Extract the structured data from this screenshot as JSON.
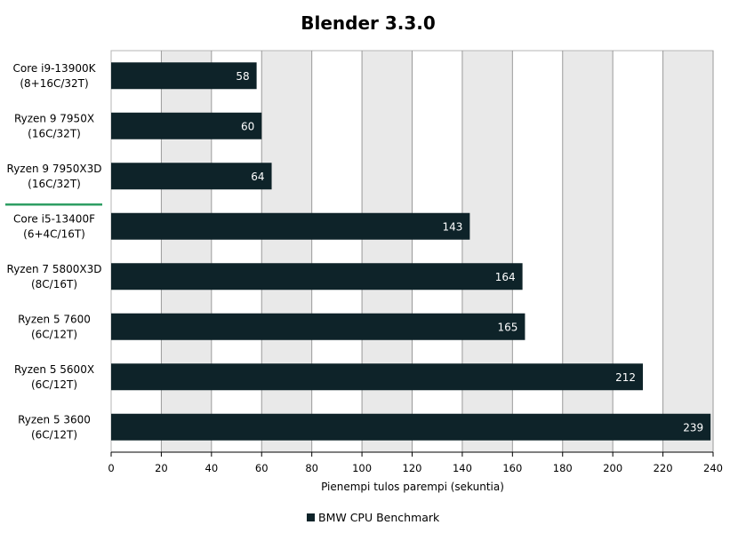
{
  "chart_data": {
    "type": "bar",
    "orientation": "horizontal",
    "title": "Blender 3.3.0",
    "xlabel": "Pienempi tulos parempi (sekuntia)",
    "ylabel": "",
    "xlim": [
      0,
      240
    ],
    "xticks": [
      0,
      20,
      40,
      60,
      80,
      100,
      120,
      140,
      160,
      180,
      200,
      220,
      240
    ],
    "grid": true,
    "legend_position": "bottom",
    "categories": [
      [
        "Core i9-13900K",
        "(8+16C/32T)"
      ],
      [
        "Ryzen 9 7950X",
        "(16C/32T)"
      ],
      [
        "Ryzen 9 7950X3D",
        "(16C/32T)"
      ],
      [
        "Core i5-13400F",
        "(6+4C/16T)"
      ],
      [
        "Ryzen 7 5800X3D",
        "(8C/16T)"
      ],
      [
        "Ryzen 5 7600",
        "(6C/12T)"
      ],
      [
        "Ryzen 5 5600X",
        "(6C/12T)"
      ],
      [
        "Ryzen 5 3600",
        "(6C/12T)"
      ]
    ],
    "highlighted_category_index": 2,
    "series": [
      {
        "name": "BMW CPU Benchmark",
        "values": [
          58,
          60,
          64,
          143,
          164,
          165,
          212,
          239
        ]
      }
    ],
    "colors": {
      "bar": "#0e2329",
      "band_light": "#ffffff",
      "band_dark": "#e9e9e9",
      "grid": "#9a9a9a",
      "highlight_underline": "#2e9e63"
    }
  }
}
